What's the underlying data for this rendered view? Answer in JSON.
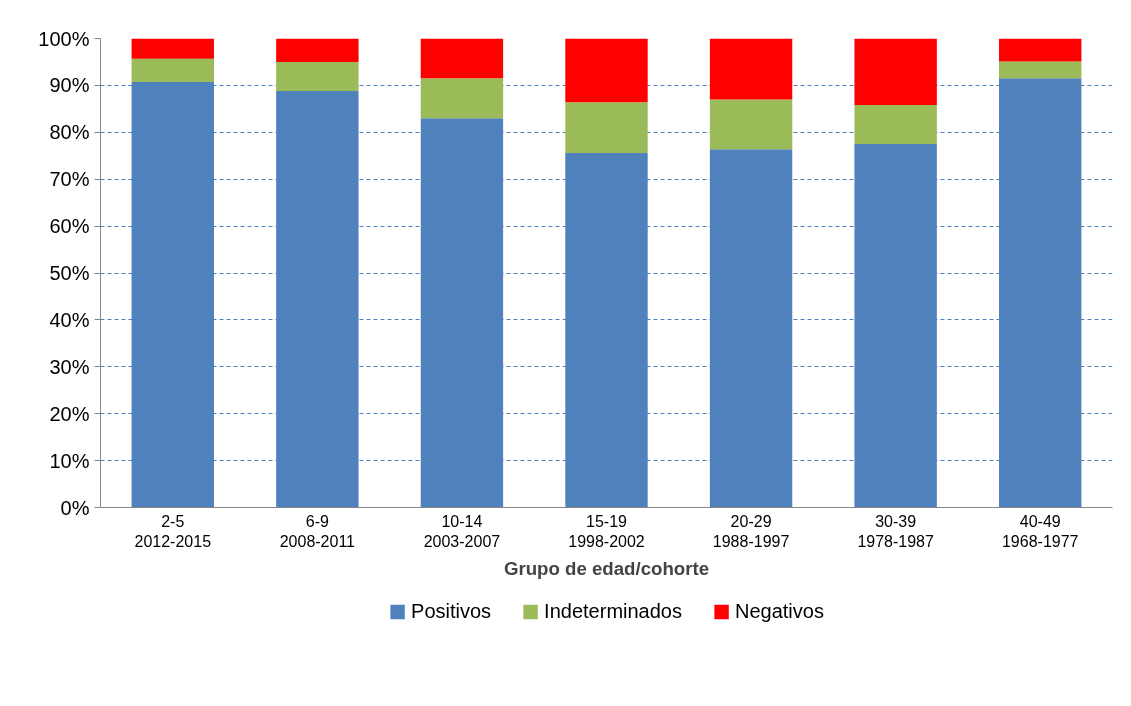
{
  "chart_data": {
    "type": "bar",
    "stacked": true,
    "xlabel": "Grupo de edad/cohorte",
    "categories": [
      "2-5\n2012-2015",
      "6-9\n2008-2011",
      "10-14\n2003-2007",
      "15-19\n1998-2002",
      "20-29\n1988-1997",
      "30-39\n1978-1987",
      "40-49\n1968-1977"
    ],
    "series": [
      {
        "name": "Positivos",
        "color": "#4f81bd",
        "values": [
          90.7,
          88.8,
          83.0,
          75.6,
          76.4,
          77.5,
          91.5
        ]
      },
      {
        "name": "Indeterminados",
        "color": "#9bbb59",
        "values": [
          5.0,
          6.2,
          8.5,
          10.8,
          10.6,
          8.3,
          3.6
        ]
      },
      {
        "name": "Negativos",
        "color": "#ff0000",
        "values": [
          4.3,
          5.0,
          8.5,
          13.6,
          13.0,
          14.2,
          4.9
        ]
      }
    ],
    "ylim": [
      0,
      100
    ],
    "yticks": [
      {
        "value": 0,
        "label": "0%"
      },
      {
        "value": 10,
        "label": "10%"
      },
      {
        "value": 20,
        "label": "20%"
      },
      {
        "value": 30,
        "label": "30%"
      },
      {
        "value": 40,
        "label": "40%"
      },
      {
        "value": 50,
        "label": "50%"
      },
      {
        "value": 60,
        "label": "60%"
      },
      {
        "value": 70,
        "label": "70%"
      },
      {
        "value": 80,
        "label": "80%"
      },
      {
        "value": 90,
        "label": "90%"
      },
      {
        "value": 100,
        "label": "100%"
      }
    ],
    "grid": "y",
    "legend": "bottom"
  }
}
